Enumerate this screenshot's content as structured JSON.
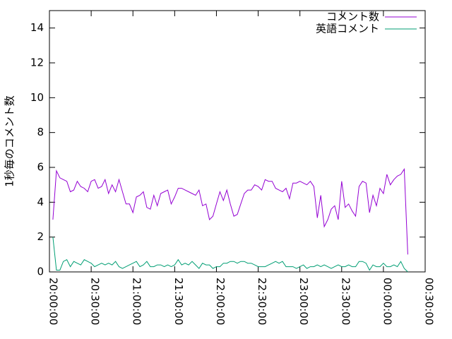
{
  "chart_data": {
    "type": "line",
    "ylabel": "1秒毎のコメント数",
    "xlim": [
      "20:00:00",
      "00:30:00"
    ],
    "xticks": [
      "20:00:00",
      "20:30:00",
      "21:00:00",
      "21:30:00",
      "22:00:00",
      "22:30:00",
      "23:00:00",
      "23:30:00",
      "00:00:00",
      "00:30:00"
    ],
    "ylim": [
      0,
      15
    ],
    "yticks": [
      0,
      2,
      4,
      6,
      8,
      10,
      12,
      14
    ],
    "legend": "upper right",
    "x": [
      "20:02:30",
      "20:05:00",
      "20:07:30",
      "20:10:00",
      "20:12:30",
      "20:15:00",
      "20:17:30",
      "20:20:00",
      "20:22:30",
      "20:25:00",
      "20:27:30",
      "20:30:00",
      "20:32:30",
      "20:35:00",
      "20:37:30",
      "20:40:00",
      "20:42:30",
      "20:45:00",
      "20:47:30",
      "20:50:00",
      "20:52:30",
      "20:55:00",
      "20:57:30",
      "21:00:00",
      "21:02:30",
      "21:05:00",
      "21:07:30",
      "21:10:00",
      "21:12:30",
      "21:15:00",
      "21:17:30",
      "21:20:00",
      "21:22:30",
      "21:25:00",
      "21:27:30",
      "21:30:00",
      "21:32:30",
      "21:35:00",
      "21:37:30",
      "21:40:00",
      "21:42:30",
      "21:45:00",
      "21:47:30",
      "21:50:00",
      "21:52:30",
      "21:55:00",
      "21:57:30",
      "22:00:00",
      "22:02:30",
      "22:05:00",
      "22:07:30",
      "22:10:00",
      "22:12:30",
      "22:15:00",
      "22:17:30",
      "22:20:00",
      "22:22:30",
      "22:25:00",
      "22:27:30",
      "22:30:00",
      "22:32:30",
      "22:35:00",
      "22:37:30",
      "22:40:00",
      "22:42:30",
      "22:45:00",
      "22:47:30",
      "22:50:00",
      "22:52:30",
      "22:55:00",
      "22:57:30",
      "23:00:00",
      "23:02:30",
      "23:05:00",
      "23:07:30",
      "23:10:00",
      "23:12:30",
      "23:15:00",
      "23:17:30",
      "23:20:00",
      "23:22:30",
      "23:25:00",
      "23:27:30",
      "23:30:00",
      "23:32:30",
      "23:35:00",
      "23:37:30",
      "23:40:00",
      "23:42:30",
      "23:45:00",
      "23:47:30",
      "23:50:00",
      "23:52:30",
      "23:55:00",
      "23:57:30",
      "00:00:00",
      "00:02:30",
      "00:05:00",
      "00:07:30",
      "00:10:00",
      "00:12:30",
      "00:15:00",
      "00:17:30"
    ],
    "series": [
      {
        "name": "コメント数",
        "color": "#9400d3",
        "values": [
          3.0,
          5.8,
          5.4,
          5.3,
          5.2,
          4.6,
          4.7,
          5.2,
          4.9,
          4.8,
          4.6,
          5.2,
          5.3,
          4.8,
          4.9,
          5.3,
          4.5,
          5.0,
          4.6,
          5.3,
          4.6,
          3.9,
          3.9,
          3.4,
          4.3,
          4.4,
          4.6,
          3.7,
          3.6,
          4.4,
          3.8,
          4.5,
          4.6,
          4.7,
          3.9,
          4.3,
          4.8,
          4.8,
          4.7,
          4.6,
          4.5,
          4.4,
          4.7,
          3.8,
          3.9,
          3.0,
          3.2,
          3.9,
          4.6,
          4.1,
          4.7,
          3.9,
          3.2,
          3.3,
          3.9,
          4.5,
          4.7,
          4.7,
          5.0,
          4.9,
          4.7,
          5.3,
          5.2,
          5.2,
          4.8,
          4.7,
          4.6,
          4.8,
          4.2,
          5.1,
          5.1,
          5.2,
          5.1,
          5.0,
          5.2,
          4.9,
          3.1,
          4.4,
          2.6,
          3.0,
          3.6,
          3.8,
          3.0,
          5.2,
          3.7,
          3.9,
          3.5,
          3.2,
          4.9,
          5.2,
          5.1,
          3.4,
          4.4,
          3.8,
          4.8,
          4.5,
          5.6,
          5.0,
          5.3,
          5.5,
          5.6,
          5.9,
          1.0
        ]
      },
      {
        "name": "英語コメント",
        "color": "#009e73",
        "values": [
          2.0,
          0.1,
          0.1,
          0.6,
          0.7,
          0.3,
          0.6,
          0.5,
          0.4,
          0.7,
          0.6,
          0.5,
          0.3,
          0.4,
          0.5,
          0.4,
          0.5,
          0.4,
          0.6,
          0.3,
          0.2,
          0.3,
          0.4,
          0.5,
          0.6,
          0.3,
          0.4,
          0.6,
          0.3,
          0.3,
          0.4,
          0.4,
          0.3,
          0.4,
          0.3,
          0.4,
          0.7,
          0.4,
          0.5,
          0.4,
          0.6,
          0.4,
          0.2,
          0.5,
          0.4,
          0.4,
          0.2,
          0.3,
          0.3,
          0.5,
          0.5,
          0.6,
          0.6,
          0.5,
          0.6,
          0.6,
          0.5,
          0.5,
          0.4,
          0.3,
          0.3,
          0.3,
          0.4,
          0.5,
          0.6,
          0.5,
          0.6,
          0.3,
          0.3,
          0.3,
          0.2,
          0.3,
          0.4,
          0.2,
          0.3,
          0.3,
          0.4,
          0.3,
          0.4,
          0.3,
          0.2,
          0.3,
          0.4,
          0.3,
          0.3,
          0.4,
          0.3,
          0.3,
          0.6,
          0.6,
          0.5,
          0.1,
          0.4,
          0.3,
          0.3,
          0.5,
          0.3,
          0.3,
          0.4,
          0.3,
          0.6,
          0.2,
          0.0
        ]
      }
    ]
  }
}
